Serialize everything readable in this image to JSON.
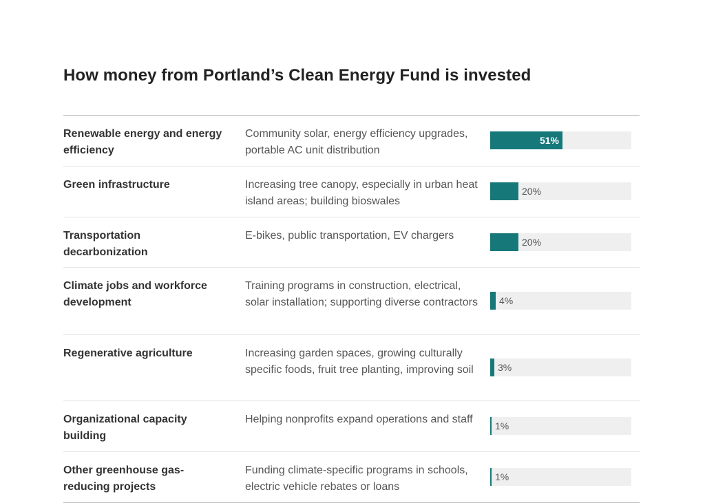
{
  "title": "How money from Portland’s Clean Energy Fund is invested",
  "colors": {
    "bar": "#17787a",
    "track": "#efefef"
  },
  "chart_data": {
    "type": "bar",
    "orientation": "horizontal",
    "title": "How money from Portland’s Clean Energy Fund is invested",
    "xlim": [
      0,
      100
    ],
    "rows": [
      {
        "category": "Renewable energy and energy efficiency",
        "description": "Community solar, energy efficiency upgrades, portable AC unit distribution",
        "value": 51,
        "label": "51%"
      },
      {
        "category": "Green infrastructure",
        "description": "Increasing tree canopy, especially in urban heat island areas; building bioswales",
        "value": 20,
        "label": "20%"
      },
      {
        "category": "Transportation decarbonization",
        "description": "E-bikes, public transportation, EV chargers",
        "value": 20,
        "label": "20%"
      },
      {
        "category": "Climate jobs and workforce development",
        "description": "Training programs in construction, electrical, solar installation; supporting diverse contractors",
        "value": 4,
        "label": "4%"
      },
      {
        "category": "Regenerative agriculture",
        "description": "Increasing garden spaces, growing culturally specific foods, fruit tree planting, improving soil",
        "value": 3,
        "label": "3%"
      },
      {
        "category": "Organizational capacity building",
        "description": "Helping nonprofits expand operations and staff",
        "value": 1,
        "label": "1%"
      },
      {
        "category": "Other greenhouse gas-reducing projects",
        "description": "Funding climate-specific programs in schools, electric vehicle rebates or loans",
        "value": 1,
        "label": "1%"
      }
    ]
  }
}
